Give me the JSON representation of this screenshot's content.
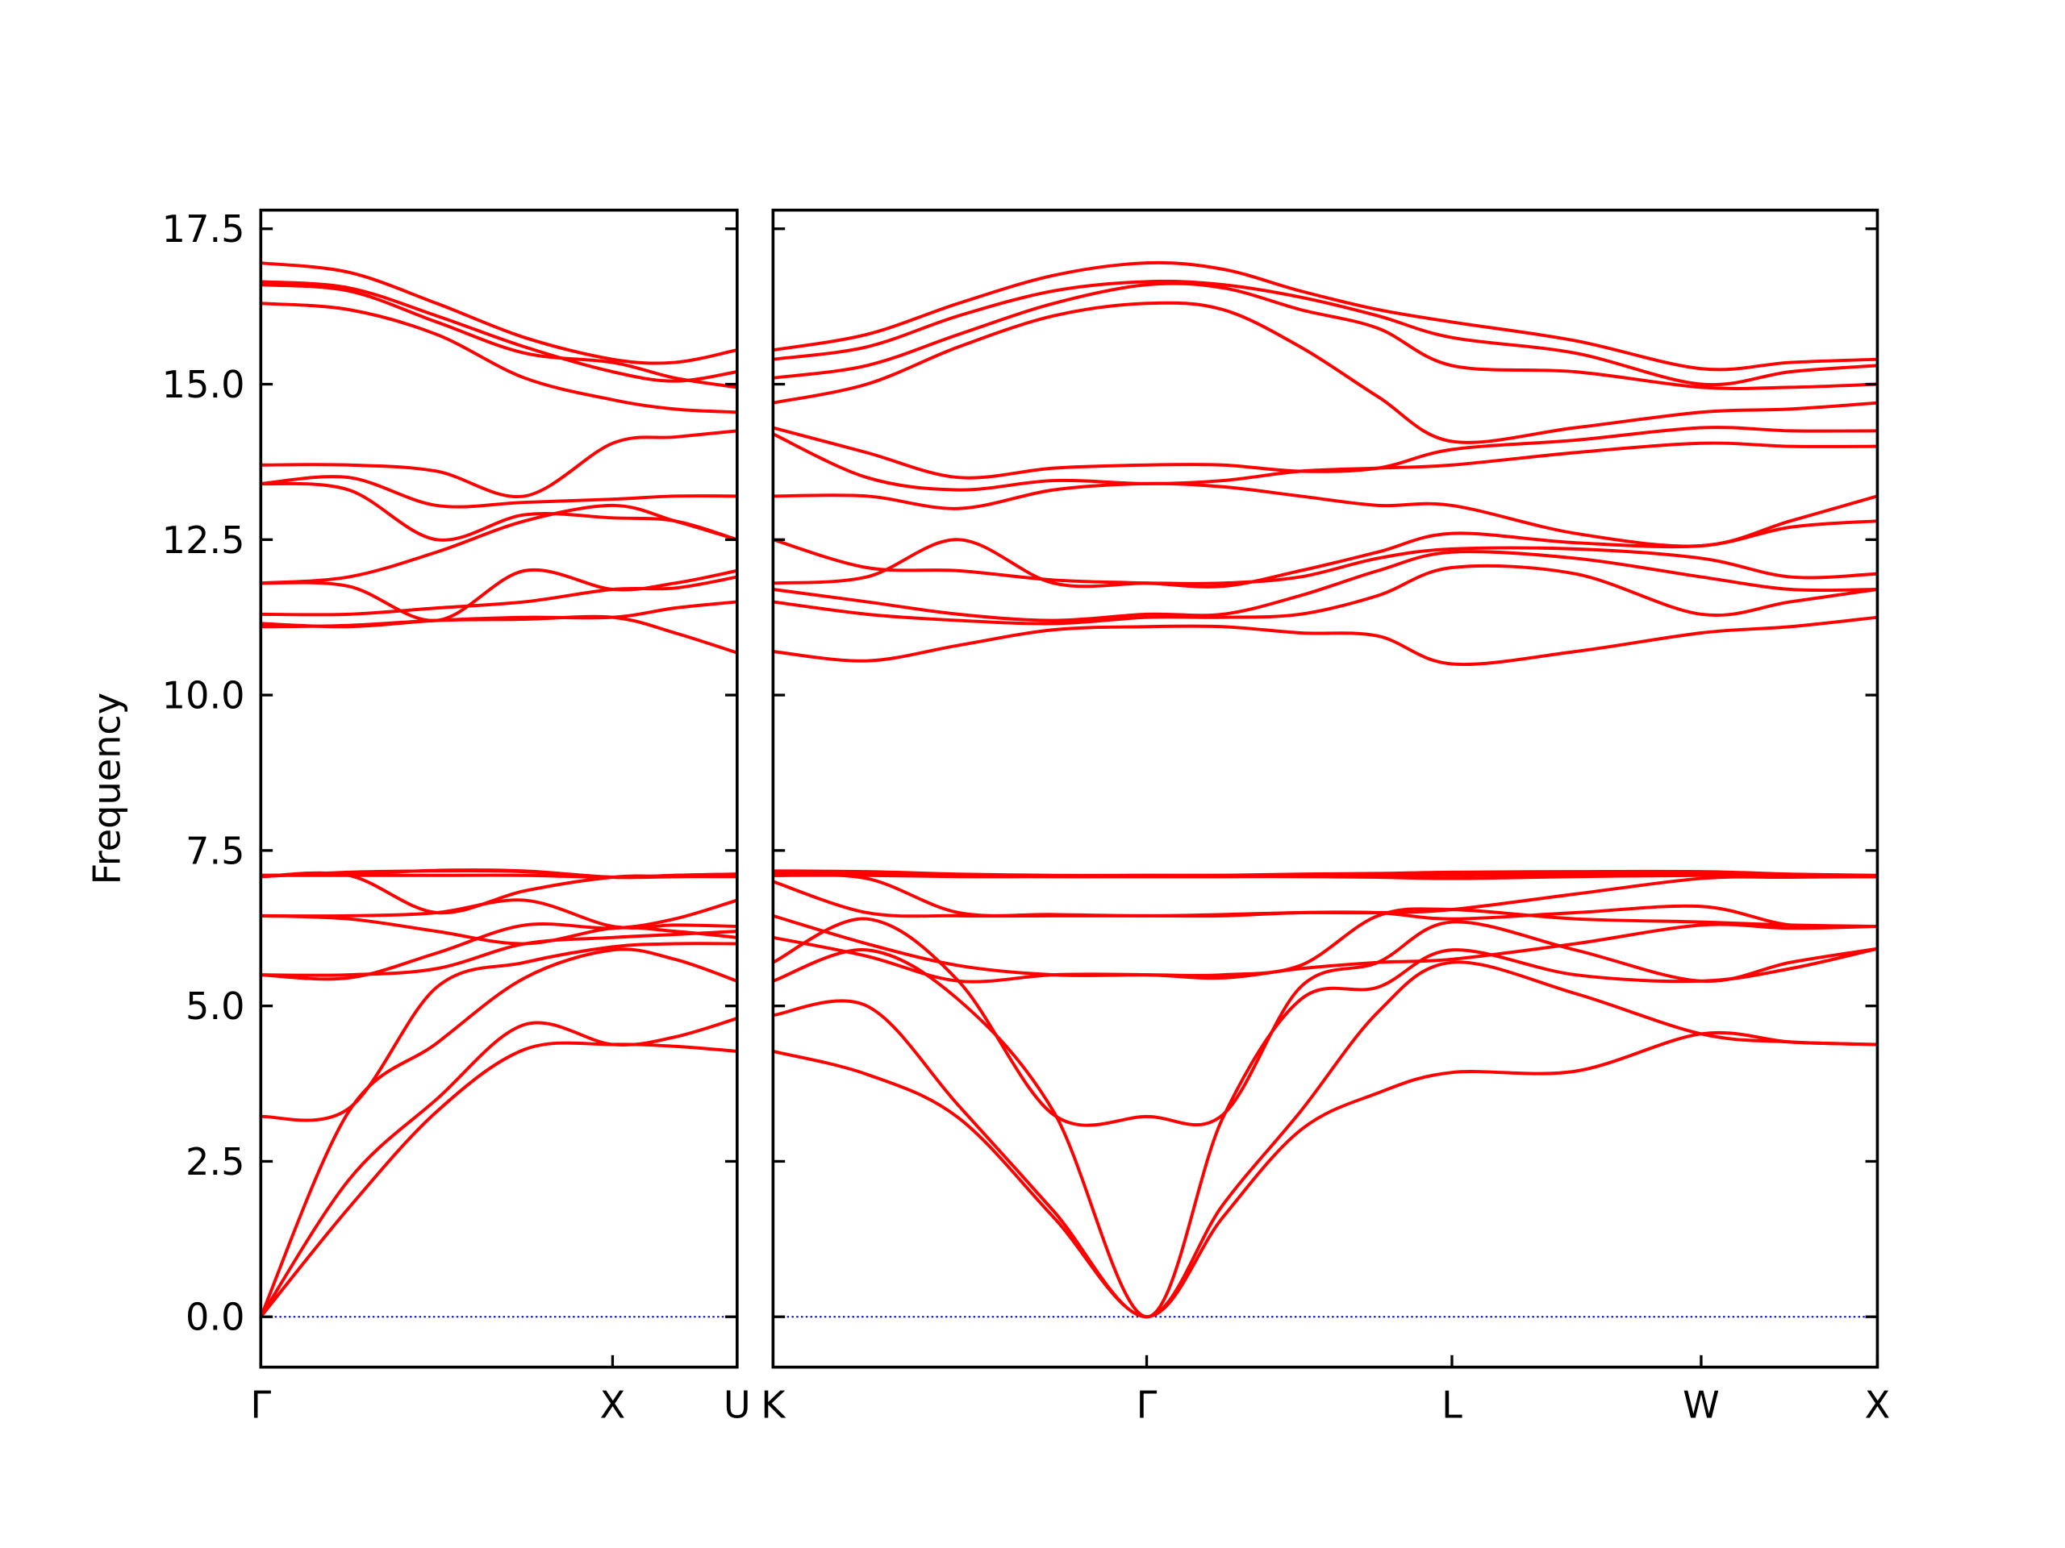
{
  "chart_data": [
    {
      "type": "line",
      "ylabel": "Frequency",
      "color": "#ff0000",
      "xlim": [
        0,
        1.354
      ],
      "ylim": [
        -0.81,
        17.8
      ],
      "xticks": [
        {
          "value": 0,
          "label": "Γ"
        },
        {
          "value": 1,
          "label": "X"
        },
        {
          "value": 1.354,
          "label": "U"
        }
      ],
      "yticks": [
        {
          "value": 0,
          "label": "0.0"
        },
        2.5,
        {
          "value": 5,
          "label": "5.0"
        },
        7.5,
        {
          "value": 10,
          "label": "10.0"
        },
        12.5,
        {
          "value": 15,
          "label": "15.0"
        },
        17.5
      ],
      "hline": {
        "value": 0,
        "color": "#0000cc"
      },
      "x": [
        0,
        0.25,
        0.5,
        0.75,
        1.0,
        1.177,
        1.354
      ],
      "series": [
        {
          "values": [
            0,
            1.75,
            3.3,
            4.3,
            4.38,
            4.35,
            4.27
          ]
        },
        {
          "values": [
            0,
            2.2,
            3.5,
            4.7,
            4.38,
            4.5,
            4.8
          ]
        },
        {
          "values": [
            0,
            3.3,
            4.4,
            5.45,
            5.9,
            5.75,
            5.4
          ]
        },
        {
          "values": [
            3.22,
            3.35,
            5.3,
            5.7,
            5.95,
            6.0,
            6.0
          ]
        },
        {
          "values": [
            5.5,
            5.5,
            5.6,
            6.0,
            6.1,
            6.15,
            6.2
          ]
        },
        {
          "values": [
            5.5,
            5.45,
            5.85,
            6.3,
            6.25,
            6.4,
            6.7
          ]
        },
        {
          "values": [
            6.45,
            6.45,
            6.5,
            6.7,
            6.28,
            6.3,
            6.28
          ]
        },
        {
          "values": [
            6.45,
            6.4,
            6.2,
            6.0,
            6.25,
            6.2,
            6.1
          ]
        },
        {
          "values": [
            7.08,
            7.1,
            6.5,
            6.85,
            7.07,
            7.08,
            7.08
          ]
        },
        {
          "values": [
            7.08,
            7.15,
            7.17,
            7.16,
            7.07,
            7.08,
            7.1
          ]
        },
        {
          "values": [
            7.1,
            7.1,
            7.1,
            7.1,
            7.07,
            7.1,
            7.12
          ]
        },
        {
          "values": [
            7.1,
            7.12,
            7.18,
            7.17,
            7.07,
            7.1,
            7.12
          ]
        },
        {
          "values": [
            11.1,
            11.12,
            11.2,
            11.22,
            11.25,
            11.0,
            10.68
          ]
        },
        {
          "values": [
            11.15,
            11.1,
            11.2,
            11.25,
            11.25,
            11.4,
            11.5
          ]
        },
        {
          "values": [
            11.3,
            11.3,
            11.4,
            11.5,
            11.7,
            11.72,
            11.9
          ]
        },
        {
          "values": [
            11.8,
            11.75,
            11.2,
            12.0,
            11.7,
            11.8,
            12.0
          ]
        },
        {
          "values": [
            11.8,
            11.9,
            12.3,
            12.8,
            13.05,
            12.8,
            12.5
          ]
        },
        {
          "values": [
            13.4,
            13.3,
            12.5,
            12.9,
            12.85,
            12.8,
            12.5
          ]
        },
        {
          "values": [
            13.4,
            13.5,
            13.05,
            13.1,
            13.15,
            13.2,
            13.2
          ]
        },
        {
          "values": [
            13.7,
            13.7,
            13.6,
            13.2,
            14.05,
            14.15,
            14.25
          ]
        },
        {
          "values": [
            16.3,
            16.2,
            15.8,
            15.1,
            14.75,
            14.6,
            14.55
          ]
        },
        {
          "values": [
            16.6,
            16.5,
            16.0,
            15.5,
            15.35,
            15.1,
            14.95
          ]
        },
        {
          "values": [
            16.65,
            16.55,
            16.1,
            15.6,
            15.2,
            15.05,
            15.2
          ]
        },
        {
          "values": [
            16.95,
            16.8,
            16.3,
            15.75,
            15.4,
            15.35,
            15.55
          ]
        }
      ]
    },
    {
      "type": "line",
      "color": "#ff0000",
      "xlim": [
        1.354,
        4.487
      ],
      "ylim": [
        -0.81,
        17.8
      ],
      "xticks": [
        {
          "value": 1.354,
          "label": "K"
        },
        {
          "value": 2.414,
          "label": "Γ"
        },
        {
          "value": 3.28,
          "label": "L"
        },
        {
          "value": 3.987,
          "label": "W"
        },
        {
          "value": 4.487,
          "label": "X"
        }
      ],
      "yticks": [
        0,
        2.5,
        5,
        7.5,
        10,
        12.5,
        15,
        17.5
      ],
      "ytick_labels": false,
      "hline": {
        "value": 0,
        "color": "#0000cc"
      },
      "x": [
        1.354,
        1.62,
        1.88,
        2.15,
        2.414,
        2.63,
        2.85,
        3.07,
        3.28,
        3.63,
        3.987,
        4.24,
        4.487
      ],
      "series": [
        {
          "values": [
            4.27,
            3.9,
            3.2,
            1.6,
            0,
            1.6,
            3.0,
            3.6,
            3.93,
            3.95,
            4.55,
            4.42,
            4.38
          ]
        },
        {
          "values": [
            4.85,
            5.0,
            3.4,
            1.7,
            0,
            1.8,
            3.3,
            4.9,
            5.7,
            5.2,
            4.55,
            4.42,
            4.38
          ]
        },
        {
          "values": [
            5.4,
            5.9,
            5.1,
            3.3,
            0,
            3.2,
            5.1,
            5.3,
            5.9,
            5.5,
            5.4,
            5.6,
            5.92
          ]
        },
        {
          "values": [
            5.7,
            6.4,
            5.4,
            3.25,
            3.22,
            3.25,
            5.3,
            5.7,
            6.35,
            5.9,
            5.4,
            5.7,
            5.92
          ]
        },
        {
          "values": [
            6.1,
            5.8,
            5.4,
            5.5,
            5.5,
            5.45,
            5.6,
            5.7,
            5.75,
            6.0,
            6.3,
            6.25,
            6.28
          ]
        },
        {
          "values": [
            6.45,
            6.0,
            5.65,
            5.5,
            5.5,
            5.5,
            5.65,
            6.45,
            6.55,
            6.4,
            6.35,
            6.3,
            6.28
          ]
        },
        {
          "values": [
            7.0,
            6.5,
            6.45,
            6.45,
            6.45,
            6.45,
            6.5,
            6.5,
            6.4,
            6.5,
            6.6,
            6.3,
            6.28
          ]
        },
        {
          "values": [
            7.1,
            7.05,
            6.5,
            6.47,
            6.45,
            6.47,
            6.5,
            6.5,
            6.55,
            6.8,
            7.05,
            7.07,
            7.08
          ]
        },
        {
          "values": [
            7.1,
            7.1,
            7.08,
            7.08,
            7.08,
            7.08,
            7.08,
            7.07,
            7.05,
            7.08,
            7.1,
            7.08,
            7.08
          ]
        },
        {
          "values": [
            7.12,
            7.12,
            7.1,
            7.08,
            7.08,
            7.08,
            7.09,
            7.1,
            7.1,
            7.12,
            7.13,
            7.09,
            7.08
          ]
        },
        {
          "values": [
            7.15,
            7.14,
            7.1,
            7.09,
            7.1,
            7.1,
            7.1,
            7.1,
            7.12,
            7.15,
            7.15,
            7.1,
            7.08
          ]
        },
        {
          "values": [
            7.17,
            7.16,
            7.12,
            7.1,
            7.1,
            7.1,
            7.12,
            7.13,
            7.15,
            7.16,
            7.16,
            7.12,
            7.1
          ]
        },
        {
          "values": [
            10.7,
            10.55,
            10.8,
            11.05,
            11.1,
            11.1,
            11.0,
            10.95,
            10.5,
            10.7,
            11.0,
            11.1,
            11.25
          ]
        },
        {
          "values": [
            11.5,
            11.3,
            11.2,
            11.15,
            11.25,
            11.25,
            11.3,
            11.6,
            12.05,
            11.95,
            11.3,
            11.5,
            11.7
          ]
        },
        {
          "values": [
            11.7,
            11.5,
            11.3,
            11.2,
            11.3,
            11.3,
            11.6,
            12.0,
            12.3,
            12.2,
            11.9,
            11.7,
            11.7
          ]
        },
        {
          "values": [
            11.8,
            11.9,
            12.5,
            11.8,
            11.8,
            11.8,
            11.9,
            12.2,
            12.35,
            12.35,
            12.2,
            11.9,
            11.95
          ]
        },
        {
          "values": [
            12.5,
            12.05,
            12.0,
            11.85,
            11.8,
            11.75,
            12.0,
            12.3,
            12.6,
            12.45,
            12.4,
            12.7,
            12.8
          ]
        },
        {
          "values": [
            13.2,
            13.2,
            13.0,
            13.3,
            13.4,
            13.35,
            13.2,
            13.05,
            13.05,
            12.6,
            12.4,
            12.8,
            13.2
          ]
        },
        {
          "values": [
            14.2,
            13.5,
            13.3,
            13.45,
            13.4,
            13.45,
            13.6,
            13.65,
            13.7,
            13.9,
            14.05,
            14.0,
            14.0
          ]
        },
        {
          "values": [
            14.3,
            13.9,
            13.5,
            13.65,
            13.7,
            13.7,
            13.6,
            13.65,
            13.95,
            14.1,
            14.3,
            14.25,
            14.25
          ]
        },
        {
          "values": [
            14.7,
            15.0,
            15.6,
            16.1,
            16.3,
            16.2,
            15.6,
            14.8,
            14.08,
            14.3,
            14.55,
            14.6,
            14.7
          ]
        },
        {
          "values": [
            15.1,
            15.3,
            15.8,
            16.3,
            16.6,
            16.55,
            16.2,
            15.9,
            15.3,
            15.2,
            14.95,
            14.95,
            15.0
          ]
        },
        {
          "values": [
            15.4,
            15.6,
            16.1,
            16.5,
            16.65,
            16.6,
            16.4,
            16.1,
            15.75,
            15.5,
            15.0,
            15.2,
            15.3
          ]
        },
        {
          "values": [
            15.55,
            15.8,
            16.3,
            16.75,
            16.95,
            16.85,
            16.5,
            16.2,
            16.0,
            15.7,
            15.25,
            15.35,
            15.4
          ]
        }
      ]
    }
  ]
}
